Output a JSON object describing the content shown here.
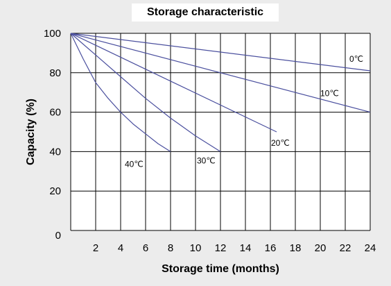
{
  "chart_data": {
    "type": "line",
    "title": "Storage characteristic",
    "xlabel": "Storage time (months)",
    "ylabel": "Capacity (%)",
    "xlim": [
      0,
      24
    ],
    "ylim": [
      0,
      100
    ],
    "x_ticks": [
      2,
      4,
      6,
      8,
      10,
      12,
      14,
      16,
      18,
      20,
      22,
      24
    ],
    "y_ticks": [
      0,
      20,
      40,
      60,
      80,
      100
    ],
    "grid": true,
    "line_color": "#4a4f9e",
    "series": [
      {
        "name": "0℃",
        "x": [
          0,
          24
        ],
        "y": [
          100,
          81
        ]
      },
      {
        "name": "10℃",
        "x": [
          0,
          24
        ],
        "y": [
          100,
          60
        ]
      },
      {
        "name": "20℃",
        "x": [
          0,
          16.5
        ],
        "y": [
          100,
          50
        ]
      },
      {
        "name": "30℃",
        "x": [
          0,
          2,
          4,
          6,
          8,
          10,
          12
        ],
        "y": [
          100,
          89,
          78,
          67,
          57,
          48,
          40
        ]
      },
      {
        "name": "40℃",
        "x": [
          0,
          1,
          2,
          3,
          4,
          5,
          6,
          7,
          8
        ],
        "y": [
          100,
          87,
          75,
          67,
          60,
          54,
          49,
          44,
          40
        ]
      }
    ]
  }
}
